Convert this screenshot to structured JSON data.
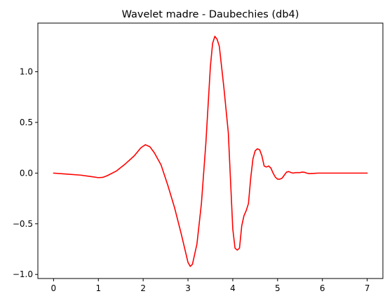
{
  "chart_data": {
    "type": "line",
    "title": "Wavelet madre - Daubechies (db4)",
    "xlabel": "",
    "ylabel": "",
    "xlim": [
      -0.35,
      7.35
    ],
    "ylim": [
      -1.04,
      1.48
    ],
    "x_ticks": [
      0,
      1,
      2,
      3,
      4,
      5,
      6,
      7
    ],
    "x_tick_labels": [
      "0",
      "1",
      "2",
      "3",
      "4",
      "5",
      "6",
      "7"
    ],
    "y_ticks": [
      -1.0,
      -0.5,
      0.0,
      0.5,
      1.0
    ],
    "y_tick_labels": [
      "−1.0",
      "−0.5",
      "0.0",
      "0.5",
      "1.0"
    ],
    "grid": false,
    "legend": "none",
    "series": [
      {
        "color": "#ff0000",
        "x": [
          0.0,
          0.3,
          0.6,
          0.85,
          1.0,
          1.1,
          1.2,
          1.4,
          1.6,
          1.8,
          1.95,
          2.05,
          2.15,
          2.25,
          2.4,
          2.55,
          2.7,
          2.85,
          3.0,
          3.05,
          3.1,
          3.2,
          3.3,
          3.4,
          3.5,
          3.55,
          3.6,
          3.65,
          3.7,
          3.8,
          3.9,
          4.0,
          4.05,
          4.1,
          4.15,
          4.2,
          4.25,
          4.3,
          4.35,
          4.4,
          4.45,
          4.5,
          4.55,
          4.6,
          4.65,
          4.7,
          4.75,
          4.8,
          4.85,
          4.9,
          4.95,
          5.0,
          5.05,
          5.1,
          5.15,
          5.2,
          5.25,
          5.3,
          5.35,
          5.4,
          5.45,
          5.5,
          5.55,
          5.6,
          5.65,
          5.7,
          5.8,
          5.9,
          6.0,
          6.5,
          7.0
        ],
        "y": [
          0.0,
          -0.01,
          -0.02,
          -0.035,
          -0.045,
          -0.042,
          -0.025,
          0.02,
          0.09,
          0.17,
          0.25,
          0.28,
          0.26,
          0.2,
          0.08,
          -0.12,
          -0.34,
          -0.6,
          -0.88,
          -0.92,
          -0.9,
          -0.7,
          -0.3,
          0.3,
          1.05,
          1.28,
          1.35,
          1.32,
          1.25,
          0.85,
          0.4,
          -0.55,
          -0.74,
          -0.76,
          -0.74,
          -0.52,
          -0.42,
          -0.37,
          -0.3,
          -0.05,
          0.14,
          0.22,
          0.24,
          0.23,
          0.17,
          0.07,
          0.06,
          0.07,
          0.05,
          0.0,
          -0.04,
          -0.06,
          -0.06,
          -0.05,
          -0.02,
          0.01,
          0.015,
          0.005,
          0.0,
          0.005,
          0.005,
          0.005,
          0.01,
          0.008,
          0.0,
          -0.005,
          -0.003,
          0.0,
          0.0,
          0.0,
          0.0
        ]
      }
    ]
  }
}
